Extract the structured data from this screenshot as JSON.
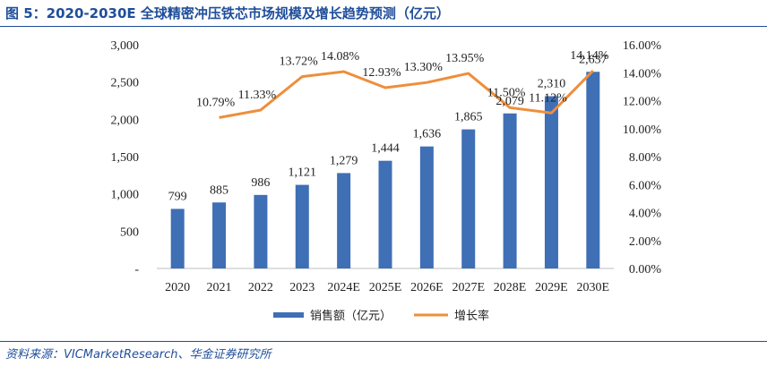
{
  "header": {
    "title": "图 5：2020-2030E 全球精密冲压铁芯市场规模及增长趋势预测（亿元）"
  },
  "footer": {
    "source": "资料来源：VICMarketResearch、华金证券研究所"
  },
  "colors": {
    "bar": "#3f6fb5",
    "line": "#ee8e3c",
    "frame": "#1f4e9a"
  },
  "chart_data": {
    "type": "bar",
    "categories": [
      "2020",
      "2021",
      "2022",
      "2023",
      "2024E",
      "2025E",
      "2026E",
      "2027E",
      "2028E",
      "2029E",
      "2030E"
    ],
    "series": [
      {
        "name": "销售额（亿元）",
        "type": "bar",
        "axis": "left",
        "values": [
          799,
          885,
          986,
          1121,
          1279,
          1444,
          1636,
          1865,
          2079,
          2310,
          2637
        ],
        "labels": [
          "799",
          "885",
          "986",
          "1,121",
          "1,279",
          "1,444",
          "1,636",
          "1,865",
          "2,079",
          "2,310",
          "2,637"
        ]
      },
      {
        "name": "增长率",
        "type": "line",
        "axis": "right",
        "values": [
          null,
          10.79,
          11.33,
          13.72,
          14.08,
          12.93,
          13.3,
          13.95,
          11.5,
          11.12,
          14.14
        ],
        "labels": [
          "",
          "10.79%",
          "11.33%",
          "13.72%",
          "14.08%",
          "12.93%",
          "13.30%",
          "13.95%",
          "11.50%",
          "11.12%",
          "14.14%"
        ]
      }
    ],
    "y_left": {
      "range": [
        0,
        3000
      ],
      "ticks": [
        0,
        500,
        1000,
        1500,
        2000,
        2500,
        3000
      ],
      "tick_labels": [
        "-",
        "500",
        "1,000",
        "1,500",
        "2,000",
        "2,500",
        "3,000"
      ]
    },
    "y_right": {
      "range": [
        0,
        16
      ],
      "ticks": [
        0,
        2,
        4,
        6,
        8,
        10,
        12,
        14,
        16
      ],
      "tick_labels": [
        "0.00%",
        "2.00%",
        "4.00%",
        "6.00%",
        "8.00%",
        "10.00%",
        "12.00%",
        "14.00%",
        "16.00%"
      ]
    },
    "grid": false,
    "legend_position": "bottom"
  }
}
